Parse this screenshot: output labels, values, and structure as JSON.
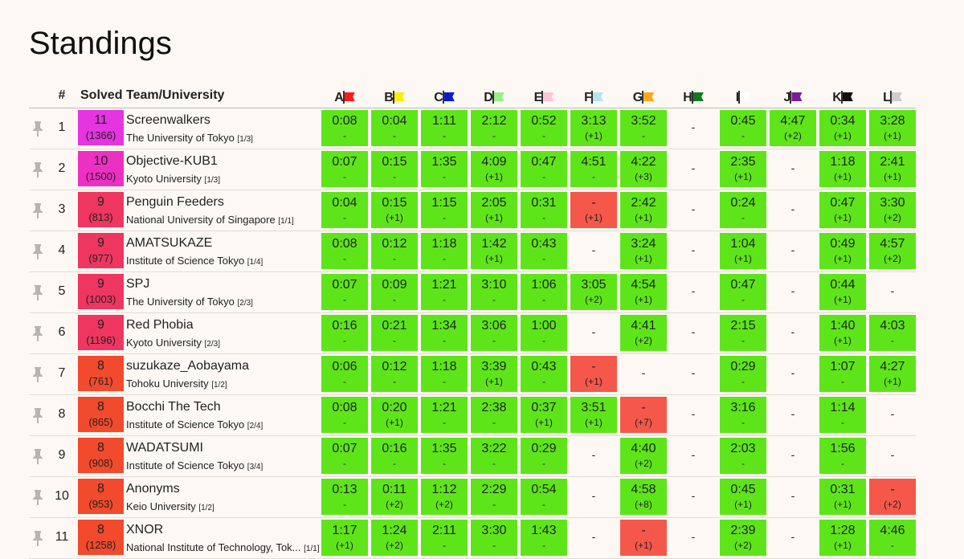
{
  "title": "Standings",
  "header": {
    "rank": "#",
    "solved": "Solved",
    "team": "Team/University"
  },
  "problems": [
    {
      "label": "A",
      "flag": "#ff1a1a"
    },
    {
      "label": "B",
      "flag": "#ffee00"
    },
    {
      "label": "C",
      "flag": "#0a1bd6"
    },
    {
      "label": "D",
      "flag": "#99ee88"
    },
    {
      "label": "E",
      "flag": "#ffc6d4"
    },
    {
      "label": "F",
      "flag": "#b4e6ef"
    },
    {
      "label": "G",
      "flag": "#ffa61a"
    },
    {
      "label": "H",
      "flag": "#0f7a1f"
    },
    {
      "label": "I",
      "flag": "#ffffff"
    },
    {
      "label": "J",
      "flag": "#7a1a9a"
    },
    {
      "label": "K",
      "flag": "#111111"
    },
    {
      "label": "L",
      "flag": "#cccccc"
    }
  ],
  "rows": [
    {
      "rank": "1",
      "solved": "11",
      "penalty": "(1366)",
      "solved_color": "#e534e0",
      "name": "Screenwalkers",
      "uni": "The University of Tokyo",
      "uni_tag": "[1/3]",
      "cells": [
        [
          "ac",
          "0:08",
          "-"
        ],
        [
          "ac",
          "0:04",
          "-"
        ],
        [
          "ac",
          "1:11",
          "-"
        ],
        [
          "ac",
          "2:12",
          "-"
        ],
        [
          "ac",
          "0:52",
          "-"
        ],
        [
          "ac",
          "3:13",
          "(+1)"
        ],
        [
          "ac",
          "3:52",
          "-"
        ],
        [
          "empty",
          "-",
          ""
        ],
        [
          "ac",
          "0:45",
          "-"
        ],
        [
          "ac",
          "4:47",
          "(+2)"
        ],
        [
          "ac",
          "0:34",
          "(+1)"
        ],
        [
          "ac",
          "3:28",
          "(+1)"
        ]
      ]
    },
    {
      "rank": "2",
      "solved": "10",
      "penalty": "(1500)",
      "solved_color": "#ee2fc4",
      "name": "Objective-KUB1",
      "uni": "Kyoto University",
      "uni_tag": "[1/3]",
      "cells": [
        [
          "ac",
          "0:07",
          "-"
        ],
        [
          "ac",
          "0:15",
          "-"
        ],
        [
          "ac",
          "1:35",
          "-"
        ],
        [
          "ac",
          "4:09",
          "(+1)"
        ],
        [
          "ac",
          "0:47",
          "-"
        ],
        [
          "ac",
          "4:51",
          "-"
        ],
        [
          "ac",
          "4:22",
          "(+3)"
        ],
        [
          "empty",
          "-",
          ""
        ],
        [
          "ac",
          "2:35",
          "(+1)"
        ],
        [
          "empty",
          "-",
          ""
        ],
        [
          "ac",
          "1:18",
          "(+1)"
        ],
        [
          "ac",
          "2:41",
          "(+1)"
        ]
      ]
    },
    {
      "rank": "3",
      "solved": "9",
      "penalty": "(813)",
      "solved_color": "#ef3660",
      "name": "Penguin Feeders",
      "uni": "National University of Singapore",
      "uni_tag": "[1/1]",
      "cells": [
        [
          "ac",
          "0:04",
          "-"
        ],
        [
          "ac",
          "0:15",
          "(+1)"
        ],
        [
          "ac",
          "1:15",
          "-"
        ],
        [
          "ac",
          "2:05",
          "(+1)"
        ],
        [
          "ac",
          "0:31",
          "-"
        ],
        [
          "wa",
          "-",
          "(+1)"
        ],
        [
          "ac",
          "2:42",
          "(+1)"
        ],
        [
          "empty",
          "-",
          ""
        ],
        [
          "ac",
          "0:24",
          "-"
        ],
        [
          "empty",
          "-",
          ""
        ],
        [
          "ac",
          "0:47",
          "(+1)"
        ],
        [
          "ac",
          "3:30",
          "(+2)"
        ]
      ]
    },
    {
      "rank": "4",
      "solved": "9",
      "penalty": "(977)",
      "solved_color": "#ef3660",
      "name": "AMATSUKAZE",
      "uni": "Institute of Science Tokyo",
      "uni_tag": "[1/4]",
      "cells": [
        [
          "ac",
          "0:08",
          "-"
        ],
        [
          "ac",
          "0:12",
          "-"
        ],
        [
          "ac",
          "1:18",
          "-"
        ],
        [
          "ac",
          "1:42",
          "(+1)"
        ],
        [
          "ac",
          "0:43",
          "-"
        ],
        [
          "empty",
          "-",
          ""
        ],
        [
          "ac",
          "3:24",
          "(+1)"
        ],
        [
          "empty",
          "-",
          ""
        ],
        [
          "ac",
          "1:04",
          "(+1)"
        ],
        [
          "empty",
          "-",
          ""
        ],
        [
          "ac",
          "0:49",
          "(+1)"
        ],
        [
          "ac",
          "4:57",
          "(+2)"
        ]
      ]
    },
    {
      "rank": "5",
      "solved": "9",
      "penalty": "(1003)",
      "solved_color": "#ef3660",
      "name": "SPJ",
      "uni": "The University of Tokyo",
      "uni_tag": "[2/3]",
      "cells": [
        [
          "ac",
          "0:07",
          "-"
        ],
        [
          "ac",
          "0:09",
          "-"
        ],
        [
          "ac",
          "1:21",
          "-"
        ],
        [
          "ac",
          "3:10",
          "-"
        ],
        [
          "ac",
          "1:06",
          "-"
        ],
        [
          "ac",
          "3:05",
          "(+2)"
        ],
        [
          "ac",
          "4:54",
          "(+1)"
        ],
        [
          "empty",
          "-",
          ""
        ],
        [
          "ac",
          "0:47",
          "-"
        ],
        [
          "empty",
          "-",
          ""
        ],
        [
          "ac",
          "0:44",
          "(+1)"
        ],
        [
          "empty",
          "-",
          ""
        ]
      ]
    },
    {
      "rank": "6",
      "solved": "9",
      "penalty": "(1196)",
      "solved_color": "#ef3660",
      "name": "Red Phobia",
      "uni": "Kyoto University",
      "uni_tag": "[2/3]",
      "cells": [
        [
          "ac",
          "0:16",
          "-"
        ],
        [
          "ac",
          "0:21",
          "-"
        ],
        [
          "ac",
          "1:34",
          "-"
        ],
        [
          "ac",
          "3:06",
          "-"
        ],
        [
          "ac",
          "1:00",
          "-"
        ],
        [
          "empty",
          "-",
          ""
        ],
        [
          "ac",
          "4:41",
          "(+2)"
        ],
        [
          "empty",
          "-",
          ""
        ],
        [
          "ac",
          "2:15",
          "-"
        ],
        [
          "empty",
          "-",
          ""
        ],
        [
          "ac",
          "1:40",
          "(+1)"
        ],
        [
          "ac",
          "4:03",
          "-"
        ]
      ]
    },
    {
      "rank": "7",
      "solved": "8",
      "penalty": "(761)",
      "solved_color": "#f24a2c",
      "name": "suzukaze_Aobayama",
      "uni": "Tohoku University",
      "uni_tag": "[1/2]",
      "cells": [
        [
          "ac",
          "0:06",
          "-"
        ],
        [
          "ac",
          "0:12",
          "-"
        ],
        [
          "ac",
          "1:18",
          "-"
        ],
        [
          "ac",
          "3:39",
          "(+1)"
        ],
        [
          "ac",
          "0:43",
          "-"
        ],
        [
          "wa",
          "-",
          "(+1)"
        ],
        [
          "empty",
          "-",
          ""
        ],
        [
          "empty",
          "-",
          ""
        ],
        [
          "ac",
          "0:29",
          "-"
        ],
        [
          "empty",
          "-",
          ""
        ],
        [
          "ac",
          "1:07",
          "-"
        ],
        [
          "ac",
          "4:27",
          "(+1)"
        ]
      ]
    },
    {
      "rank": "8",
      "solved": "8",
      "penalty": "(865)",
      "solved_color": "#f24a2c",
      "name": "Bocchi The Tech",
      "uni": "Institute of Science Tokyo",
      "uni_tag": "[2/4]",
      "cells": [
        [
          "ac",
          "0:08",
          "-"
        ],
        [
          "ac",
          "0:20",
          "(+1)"
        ],
        [
          "ac",
          "1:21",
          "-"
        ],
        [
          "ac",
          "2:38",
          "-"
        ],
        [
          "ac",
          "0:37",
          "(+1)"
        ],
        [
          "ac",
          "3:51",
          "(+1)"
        ],
        [
          "wa",
          "-",
          "(+7)"
        ],
        [
          "empty",
          "-",
          ""
        ],
        [
          "ac",
          "3:16",
          "-"
        ],
        [
          "empty",
          "-",
          ""
        ],
        [
          "ac",
          "1:14",
          "-"
        ],
        [
          "empty",
          "-",
          ""
        ]
      ]
    },
    {
      "rank": "9",
      "solved": "8",
      "penalty": "(908)",
      "solved_color": "#f24a2c",
      "name": "WADATSUMI",
      "uni": "Institute of Science Tokyo",
      "uni_tag": "[3/4]",
      "cells": [
        [
          "ac",
          "0:07",
          "-"
        ],
        [
          "ac",
          "0:16",
          "-"
        ],
        [
          "ac",
          "1:35",
          "-"
        ],
        [
          "ac",
          "3:22",
          "-"
        ],
        [
          "ac",
          "0:29",
          "-"
        ],
        [
          "empty",
          "-",
          ""
        ],
        [
          "ac",
          "4:40",
          "(+2)"
        ],
        [
          "empty",
          "-",
          ""
        ],
        [
          "ac",
          "2:03",
          "-"
        ],
        [
          "empty",
          "-",
          ""
        ],
        [
          "ac",
          "1:56",
          "-"
        ],
        [
          "empty",
          "-",
          ""
        ]
      ]
    },
    {
      "rank": "10",
      "solved": "8",
      "penalty": "(953)",
      "solved_color": "#f24a2c",
      "name": "Anonyms",
      "uni": "Keio University",
      "uni_tag": "[1/2]",
      "cells": [
        [
          "ac",
          "0:13",
          "-"
        ],
        [
          "ac",
          "0:11",
          "(+2)"
        ],
        [
          "ac",
          "1:12",
          "(+2)"
        ],
        [
          "ac",
          "2:29",
          "-"
        ],
        [
          "ac",
          "0:54",
          "-"
        ],
        [
          "empty",
          "-",
          ""
        ],
        [
          "ac",
          "4:58",
          "(+8)"
        ],
        [
          "empty",
          "-",
          ""
        ],
        [
          "ac",
          "0:45",
          "(+1)"
        ],
        [
          "empty",
          "-",
          ""
        ],
        [
          "ac",
          "0:31",
          "(+1)"
        ],
        [
          "wa",
          "-",
          "(+2)"
        ]
      ]
    },
    {
      "rank": "11",
      "solved": "8",
      "penalty": "(1258)",
      "solved_color": "#f24a2c",
      "name": "XNOR",
      "uni": "National Institute of Technology, Tok...",
      "uni_tag": "[1/1]",
      "cells": [
        [
          "ac",
          "1:17",
          "(+1)"
        ],
        [
          "ac",
          "1:24",
          "(+2)"
        ],
        [
          "ac",
          "2:11",
          "-"
        ],
        [
          "ac",
          "3:30",
          "-"
        ],
        [
          "ac",
          "1:43",
          "-"
        ],
        [
          "empty",
          "-",
          ""
        ],
        [
          "wa",
          "-",
          "(+1)"
        ],
        [
          "empty",
          "-",
          ""
        ],
        [
          "ac",
          "2:39",
          "(+2)"
        ],
        [
          "empty",
          "-",
          ""
        ],
        [
          "ac",
          "1:28",
          "(+1)"
        ],
        [
          "ac",
          "4:46",
          "-"
        ]
      ]
    }
  ]
}
